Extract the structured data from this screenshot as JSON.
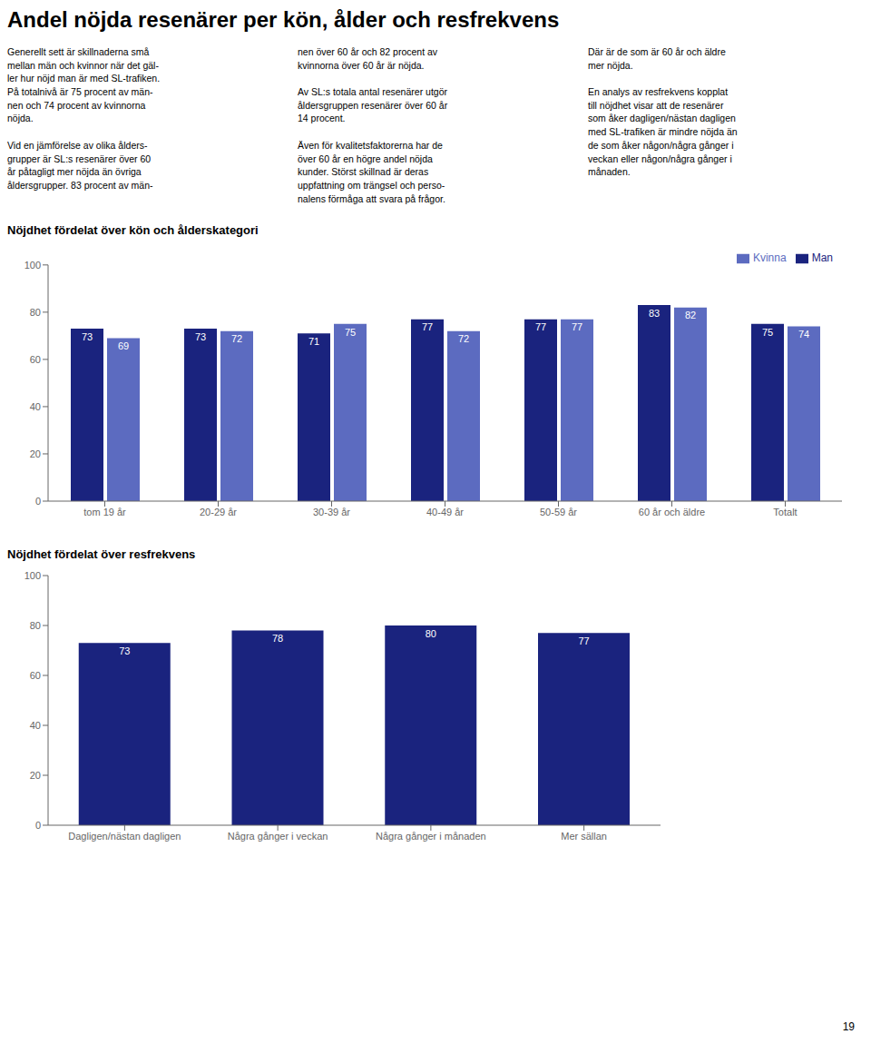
{
  "title": "Andel nöjda resenärer per kön, ålder och resfrekvens",
  "annotations": [
    "Generellt sett är skillnaderna små\nmellan män och kvinnor när det gäl-\nler hur nöjd man är med SL-trafiken.\nPå totalnivå är 75 procent av män-\nnen och 74 procent av kvinnorna\nnöjda.\n\nVid en jämförelse av olika ålders-\ngrupper är SL:s resenärer över 60\når påtagligt mer nöjda än övriga\nåldersgrupper. 83 procent av män-",
    "nen över 60 år och 82 procent av\nkvinnorna över 60 år är nöjda.\n\nAv SL:s totala antal resenärer utgör\nåldersgruppen resenärer över 60 år\n14 procent.\n\nÄven för kvalitetsfaktorerna har de\növer 60 år en högre andel nöjda\nkunder. Störst skillnad är deras\nuppfattning om trängsel och perso-\nnalens förmåga att svara på frågor.",
    "Där är de som är 60 år och äldre\nmer nöjda.\n\nEn analys av resfrekvens kopplat\ntill nöjdhet visar att de resenärer\nsom åker dagligen/nästan dagligen\nmed SL-trafiken är mindre nöjda än\nde som åker någon/några gånger i\nveckan eller någon/några gånger i\nmånaden.",
    "19"
  ],
  "chart_data": [
    {
      "type": "bar",
      "title": "Nöjdhet fördelat över kön och ålderskategori",
      "categories": [
        "tom 19 år",
        "20-29 år",
        "30-39 år",
        "40-49 år",
        "50-59 år",
        "60 år och äldre",
        "Totalt"
      ],
      "series": [
        {
          "name": "Man",
          "color": "#1a237e",
          "values": [
            73,
            73,
            71,
            77,
            77,
            83,
            75
          ]
        },
        {
          "name": "Kvinna",
          "color": "#5c6bc0",
          "values": [
            69,
            72,
            75,
            72,
            77,
            82,
            74
          ]
        }
      ],
      "ylim": [
        0,
        100
      ],
      "yticks": [
        0,
        20,
        40,
        60,
        80,
        100
      ],
      "grid": false,
      "legend": "upper right",
      "data_labels": true
    },
    {
      "type": "bar",
      "title": "Nöjdhet fördelat över resfrekvens",
      "categories": [
        "Dagligen/nästan dagligen",
        "Några gånger i veckan",
        "Några gånger i månaden",
        "Mer sällan"
      ],
      "values": [
        73,
        78,
        80,
        77
      ],
      "color": "#1a237e",
      "ylim": [
        0,
        100
      ],
      "yticks": [
        0,
        20,
        40,
        60,
        80,
        100
      ],
      "grid": false,
      "data_labels": true
    }
  ]
}
